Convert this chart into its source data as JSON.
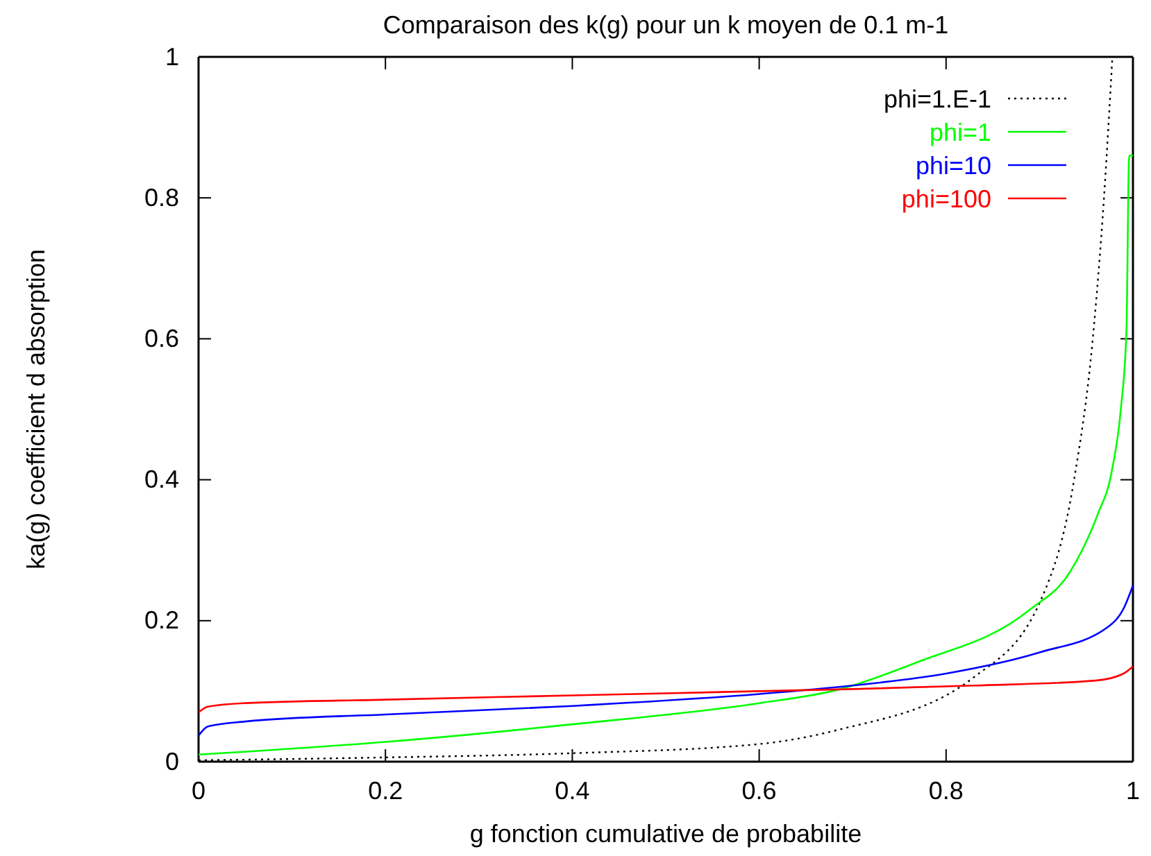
{
  "chart_data": {
    "type": "line",
    "title": "Comparaison des k(g) pour un k moyen de 0.1 m-1",
    "xlabel": "g fonction cumulative de probabilite",
    "ylabel": "ka(g) coefficient d absorption",
    "xlim": [
      0,
      1
    ],
    "ylim": [
      0,
      1
    ],
    "xticks": [
      0,
      0.2,
      0.4,
      0.6,
      0.8,
      1
    ],
    "yticks": [
      0,
      0.2,
      0.4,
      0.6,
      0.8,
      1
    ],
    "grid": false,
    "legend": "top right",
    "marker": "none",
    "series": [
      {
        "name": "phi=1.E-1",
        "color": "#000000",
        "line_style": "dotted",
        "x": [
          0,
          0.2,
          0.4,
          0.6,
          0.684,
          0.83,
          0.903,
          0.937,
          0.957,
          0.969,
          0.978
        ],
        "values": [
          0.002,
          0.006,
          0.012,
          0.025,
          0.045,
          0.12,
          0.234,
          0.4,
          0.6,
          0.8,
          1.0
        ]
      },
      {
        "name": "phi=1",
        "color": "#00ff00",
        "line_style": "solid",
        "x": [
          0,
          0.2,
          0.4,
          0.6,
          0.684,
          0.767,
          0.889,
          0.933,
          0.962,
          0.977,
          0.987,
          0.993,
          0.996,
          1
        ],
        "values": [
          0.01,
          0.028,
          0.053,
          0.083,
          0.102,
          0.14,
          0.215,
          0.27,
          0.35,
          0.41,
          0.5,
          0.61,
          0.86,
          0.86
        ]
      },
      {
        "name": "phi=10",
        "color": "#0000ff",
        "line_style": "solid",
        "x": [
          0,
          0.01,
          0.05,
          0.2,
          0.4,
          0.6,
          0.7,
          0.8,
          0.9,
          0.972,
          0.991,
          1
        ],
        "values": [
          0.037,
          0.05,
          0.057,
          0.067,
          0.079,
          0.096,
          0.108,
          0.125,
          0.155,
          0.19,
          0.22,
          0.25
        ]
      },
      {
        "name": "phi=100",
        "color": "#ff0000",
        "line_style": "solid",
        "x": [
          0,
          0.01,
          0.05,
          0.2,
          0.4,
          0.6,
          0.7,
          0.83,
          0.96,
          0.99,
          1
        ],
        "values": [
          0.07,
          0.078,
          0.083,
          0.088,
          0.094,
          0.1,
          0.103,
          0.108,
          0.115,
          0.125,
          0.135
        ]
      }
    ]
  }
}
